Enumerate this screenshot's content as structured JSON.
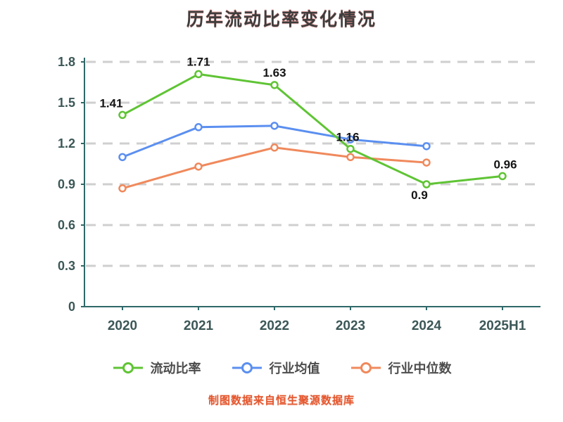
{
  "title": "历年流动比率变化情况",
  "source_note": "制图数据来自恒生聚源数据库",
  "colors": {
    "grid": "#cfcfcf",
    "axis": "#2f6868",
    "tick_label": "#3c5757",
    "data_label": "#141414",
    "title_text": "#3d3d3d",
    "source_text": "#e4572e",
    "legend_text": "#4c4c4c"
  },
  "chart_data": {
    "type": "line",
    "title": "历年流动比率变化情况",
    "categories": [
      "2020",
      "2021",
      "2022",
      "2023",
      "2024",
      "2025H1"
    ],
    "series": [
      {
        "name": "流动比率",
        "color": "#5fc434",
        "values": [
          1.41,
          1.71,
          1.63,
          1.16,
          0.9,
          0.96
        ],
        "point_labels": [
          "1.41",
          "1.71",
          "1.63",
          "1.16",
          "0.9",
          "0.96"
        ]
      },
      {
        "name": "行业均值",
        "color": "#5b8ff0",
        "values": [
          1.1,
          1.32,
          1.33,
          1.23,
          1.18,
          null
        ]
      },
      {
        "name": "行业中位数",
        "color": "#f0895c",
        "values": [
          0.87,
          1.03,
          1.17,
          1.1,
          1.06,
          null
        ]
      }
    ],
    "ylim": [
      0,
      1.8
    ],
    "yticks": [
      "0",
      "0.3",
      "0.6",
      "0.9",
      "1.2",
      "1.5",
      "1.8"
    ],
    "grid": "horizontal-dashed",
    "legend_position": "bottom",
    "marker": "hollow-circle"
  }
}
